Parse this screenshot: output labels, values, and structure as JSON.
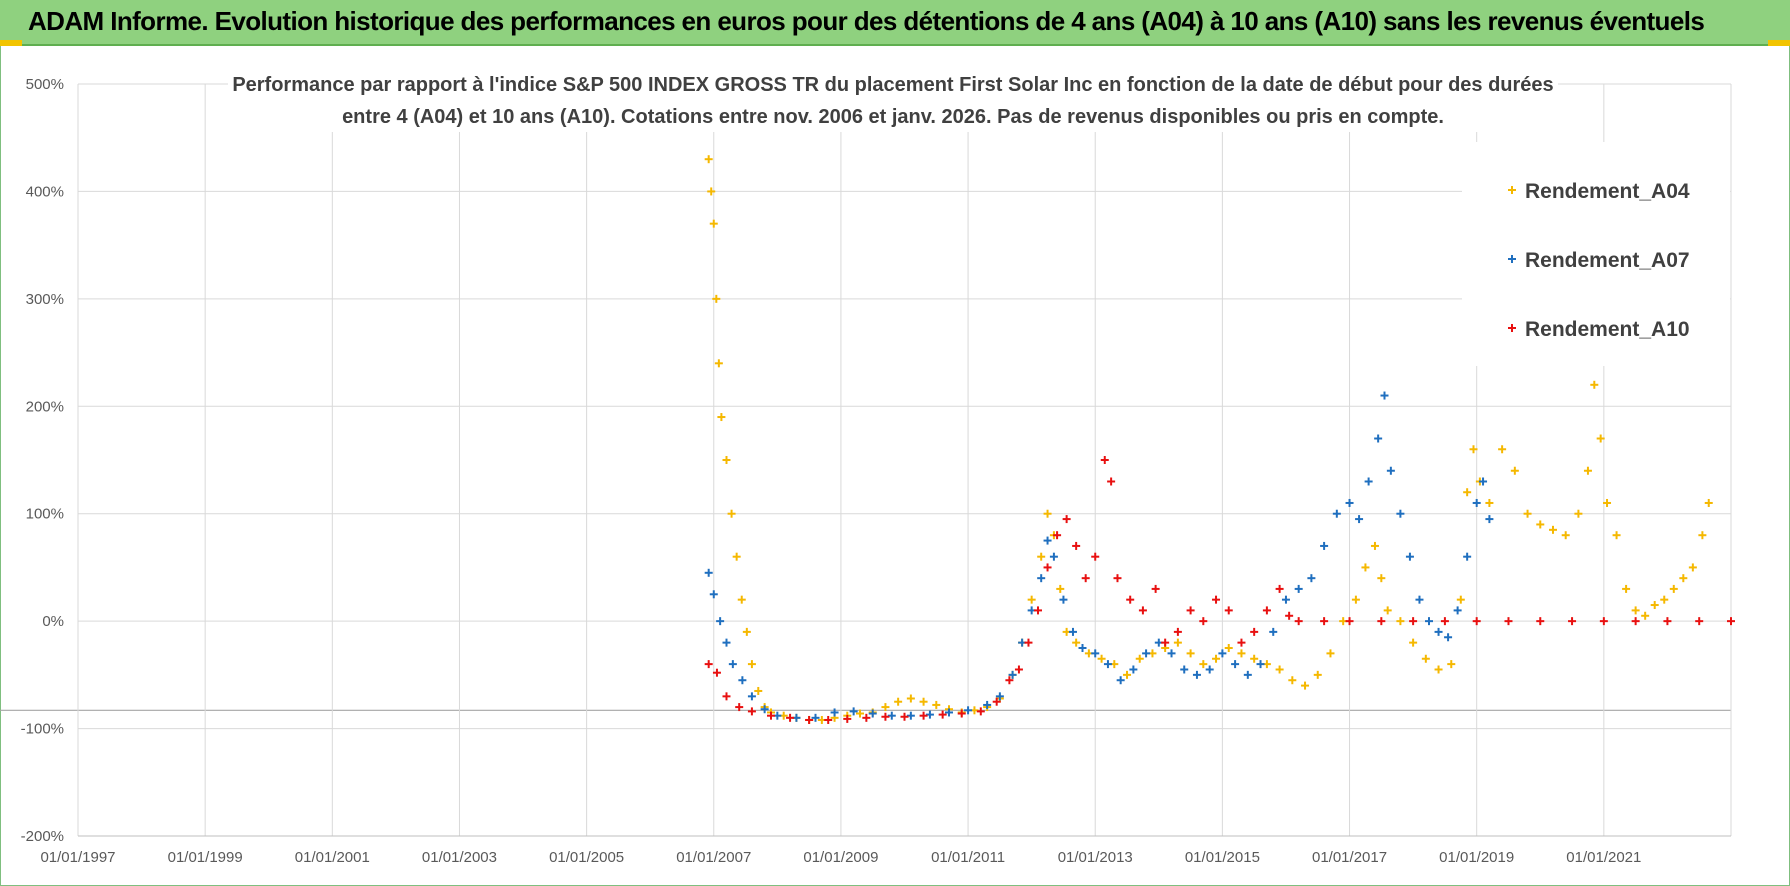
{
  "banner": {
    "title": "ADAM Informe. Evolution historique des performances en euros pour des détentions de 4 ans (A04) à 10 ans (A10) sans les revenus éventuels"
  },
  "colors": {
    "banner_bg": "#8fd17f",
    "accent": "#f2c400",
    "A04": "#f5b800",
    "A07": "#1f6fbf",
    "A10": "#e81010"
  },
  "chart_data": {
    "type": "scatter",
    "title_line1": "Performance par rapport à l'indice S&P 500 INDEX GROSS TR  du placement First Solar Inc en fonction de la date de début pour des durées",
    "title_line2": "entre 4 (A04) et 10 ans (A10).  Cotations entre nov. 2006 et janv. 2026. Pas de revenus disponibles ou pris en compte.",
    "xlabel": "",
    "ylabel": "",
    "ylim": [
      -200,
      500
    ],
    "y_ticks": [
      "500%",
      "400%",
      "300%",
      "200%",
      "100%",
      "0%",
      "-100%",
      "-200%"
    ],
    "x_ticks": [
      "01/01/1997",
      "01/01/1999",
      "01/01/2001",
      "01/01/2003",
      "01/01/2005",
      "01/01/2007",
      "01/01/2009",
      "01/01/2011",
      "01/01/2013",
      "01/01/2015",
      "01/01/2017",
      "01/01/2019",
      "01/01/2021"
    ],
    "xlim": [
      1997.0,
      2023.0
    ],
    "grid": true,
    "legend_position": "top-right",
    "series": [
      {
        "name": "Rendement_A04",
        "color_key": "A04",
        "points": [
          [
            2006.92,
            430
          ],
          [
            2006.96,
            400
          ],
          [
            2007.0,
            370
          ],
          [
            2007.04,
            300
          ],
          [
            2007.08,
            240
          ],
          [
            2007.12,
            190
          ],
          [
            2007.2,
            150
          ],
          [
            2007.28,
            100
          ],
          [
            2007.36,
            60
          ],
          [
            2007.44,
            20
          ],
          [
            2007.52,
            -10
          ],
          [
            2007.6,
            -40
          ],
          [
            2007.7,
            -65
          ],
          [
            2007.8,
            -80
          ],
          [
            2007.9,
            -85
          ],
          [
            2008.1,
            -88
          ],
          [
            2008.3,
            -90
          ],
          [
            2008.5,
            -92
          ],
          [
            2008.7,
            -92
          ],
          [
            2008.9,
            -90
          ],
          [
            2009.1,
            -88
          ],
          [
            2009.3,
            -86
          ],
          [
            2009.5,
            -85
          ],
          [
            2009.7,
            -80
          ],
          [
            2009.9,
            -75
          ],
          [
            2010.1,
            -72
          ],
          [
            2010.3,
            -75
          ],
          [
            2010.5,
            -78
          ],
          [
            2010.7,
            -82
          ],
          [
            2010.9,
            -85
          ],
          [
            2011.1,
            -83
          ],
          [
            2011.3,
            -80
          ],
          [
            2011.5,
            -72
          ],
          [
            2011.7,
            -50
          ],
          [
            2011.85,
            -20
          ],
          [
            2012.0,
            20
          ],
          [
            2012.15,
            60
          ],
          [
            2012.25,
            100
          ],
          [
            2012.35,
            80
          ],
          [
            2012.45,
            30
          ],
          [
            2012.55,
            -10
          ],
          [
            2012.7,
            -20
          ],
          [
            2012.9,
            -30
          ],
          [
            2013.1,
            -35
          ],
          [
            2013.3,
            -40
          ],
          [
            2013.5,
            -50
          ],
          [
            2013.7,
            -35
          ],
          [
            2013.9,
            -30
          ],
          [
            2014.1,
            -25
          ],
          [
            2014.3,
            -20
          ],
          [
            2014.5,
            -30
          ],
          [
            2014.7,
            -40
          ],
          [
            2014.9,
            -35
          ],
          [
            2015.1,
            -25
          ],
          [
            2015.3,
            -30
          ],
          [
            2015.5,
            -35
          ],
          [
            2015.7,
            -40
          ],
          [
            2015.9,
            -45
          ],
          [
            2016.1,
            -55
          ],
          [
            2016.3,
            -60
          ],
          [
            2016.5,
            -50
          ],
          [
            2016.7,
            -30
          ],
          [
            2016.9,
            0
          ],
          [
            2017.1,
            20
          ],
          [
            2017.25,
            50
          ],
          [
            2017.4,
            70
          ],
          [
            2017.5,
            40
          ],
          [
            2017.6,
            10
          ],
          [
            2017.8,
            0
          ],
          [
            2018.0,
            -20
          ],
          [
            2018.2,
            -35
          ],
          [
            2018.4,
            -45
          ],
          [
            2018.6,
            -40
          ],
          [
            2018.75,
            20
          ],
          [
            2018.85,
            120
          ],
          [
            2018.95,
            160
          ],
          [
            2019.05,
            130
          ],
          [
            2019.2,
            110
          ],
          [
            2019.4,
            160
          ],
          [
            2019.6,
            140
          ],
          [
            2019.8,
            100
          ],
          [
            2020.0,
            90
          ],
          [
            2020.2,
            85
          ],
          [
            2020.4,
            80
          ],
          [
            2020.6,
            100
          ],
          [
            2020.75,
            140
          ],
          [
            2020.85,
            220
          ],
          [
            2020.95,
            170
          ],
          [
            2021.05,
            110
          ],
          [
            2021.2,
            80
          ],
          [
            2021.35,
            30
          ],
          [
            2021.5,
            10
          ],
          [
            2021.65,
            5
          ],
          [
            2021.8,
            15
          ],
          [
            2021.95,
            20
          ],
          [
            2022.1,
            30
          ],
          [
            2022.25,
            40
          ],
          [
            2022.4,
            50
          ],
          [
            2022.55,
            80
          ],
          [
            2022.65,
            110
          ]
        ]
      },
      {
        "name": "Rendement_A07",
        "color_key": "A07",
        "points": [
          [
            2006.92,
            45
          ],
          [
            2007.0,
            25
          ],
          [
            2007.1,
            0
          ],
          [
            2007.2,
            -20
          ],
          [
            2007.3,
            -40
          ],
          [
            2007.45,
            -55
          ],
          [
            2007.6,
            -70
          ],
          [
            2007.8,
            -82
          ],
          [
            2008.0,
            -88
          ],
          [
            2008.3,
            -90
          ],
          [
            2008.6,
            -90
          ],
          [
            2008.9,
            -85
          ],
          [
            2009.2,
            -84
          ],
          [
            2009.5,
            -86
          ],
          [
            2009.8,
            -88
          ],
          [
            2010.1,
            -88
          ],
          [
            2010.4,
            -87
          ],
          [
            2010.7,
            -85
          ],
          [
            2011.0,
            -83
          ],
          [
            2011.3,
            -78
          ],
          [
            2011.5,
            -70
          ],
          [
            2011.7,
            -50
          ],
          [
            2011.85,
            -20
          ],
          [
            2012.0,
            10
          ],
          [
            2012.15,
            40
          ],
          [
            2012.25,
            75
          ],
          [
            2012.35,
            60
          ],
          [
            2012.5,
            20
          ],
          [
            2012.65,
            -10
          ],
          [
            2012.8,
            -25
          ],
          [
            2013.0,
            -30
          ],
          [
            2013.2,
            -40
          ],
          [
            2013.4,
            -55
          ],
          [
            2013.6,
            -45
          ],
          [
            2013.8,
            -30
          ],
          [
            2014.0,
            -20
          ],
          [
            2014.2,
            -30
          ],
          [
            2014.4,
            -45
          ],
          [
            2014.6,
            -50
          ],
          [
            2014.8,
            -45
          ],
          [
            2015.0,
            -30
          ],
          [
            2015.2,
            -40
          ],
          [
            2015.4,
            -50
          ],
          [
            2015.6,
            -40
          ],
          [
            2015.8,
            -10
          ],
          [
            2016.0,
            20
          ],
          [
            2016.2,
            30
          ],
          [
            2016.4,
            40
          ],
          [
            2016.6,
            70
          ],
          [
            2016.8,
            100
          ],
          [
            2017.0,
            110
          ],
          [
            2017.15,
            95
          ],
          [
            2017.3,
            130
          ],
          [
            2017.45,
            170
          ],
          [
            2017.55,
            210
          ],
          [
            2017.65,
            140
          ],
          [
            2017.8,
            100
          ],
          [
            2017.95,
            60
          ],
          [
            2018.1,
            20
          ],
          [
            2018.25,
            0
          ],
          [
            2018.4,
            -10
          ],
          [
            2018.55,
            -15
          ],
          [
            2018.7,
            10
          ],
          [
            2018.85,
            60
          ],
          [
            2019.0,
            110
          ],
          [
            2019.1,
            130
          ],
          [
            2019.2,
            95
          ]
        ]
      },
      {
        "name": "Rendement_A10",
        "color_key": "A10",
        "points": [
          [
            2006.92,
            -40
          ],
          [
            2007.05,
            -48
          ],
          [
            2007.2,
            -70
          ],
          [
            2007.4,
            -80
          ],
          [
            2007.6,
            -84
          ],
          [
            2007.9,
            -88
          ],
          [
            2008.2,
            -90
          ],
          [
            2008.5,
            -92
          ],
          [
            2008.8,
            -92
          ],
          [
            2009.1,
            -91
          ],
          [
            2009.4,
            -90
          ],
          [
            2009.7,
            -89
          ],
          [
            2010.0,
            -89
          ],
          [
            2010.3,
            -88
          ],
          [
            2010.6,
            -87
          ],
          [
            2010.9,
            -86
          ],
          [
            2011.2,
            -84
          ],
          [
            2011.45,
            -75
          ],
          [
            2011.65,
            -55
          ],
          [
            2011.8,
            -45
          ],
          [
            2011.95,
            -20
          ],
          [
            2012.1,
            10
          ],
          [
            2012.25,
            50
          ],
          [
            2012.4,
            80
          ],
          [
            2012.55,
            95
          ],
          [
            2012.7,
            70
          ],
          [
            2012.85,
            40
          ],
          [
            2013.0,
            60
          ],
          [
            2013.15,
            150
          ],
          [
            2013.25,
            130
          ],
          [
            2013.35,
            40
          ],
          [
            2013.55,
            20
          ],
          [
            2013.75,
            10
          ],
          [
            2013.95,
            30
          ],
          [
            2014.1,
            -20
          ],
          [
            2014.3,
            -10
          ],
          [
            2014.5,
            10
          ],
          [
            2014.7,
            0
          ],
          [
            2014.9,
            20
          ],
          [
            2015.1,
            10
          ],
          [
            2015.3,
            -20
          ],
          [
            2015.5,
            -10
          ],
          [
            2015.7,
            10
          ],
          [
            2015.9,
            30
          ],
          [
            2016.05,
            5
          ],
          [
            2016.2,
            0
          ],
          [
            2016.6,
            0
          ],
          [
            2017.0,
            0
          ],
          [
            2017.5,
            0
          ],
          [
            2018.0,
            0
          ],
          [
            2018.5,
            0
          ],
          [
            2019.0,
            0
          ],
          [
            2019.5,
            0
          ],
          [
            2020.0,
            0
          ],
          [
            2020.5,
            0
          ],
          [
            2021.0,
            0
          ],
          [
            2021.5,
            0
          ],
          [
            2022.0,
            0
          ],
          [
            2022.5,
            0
          ],
          [
            2023.0,
            0
          ]
        ]
      }
    ]
  }
}
